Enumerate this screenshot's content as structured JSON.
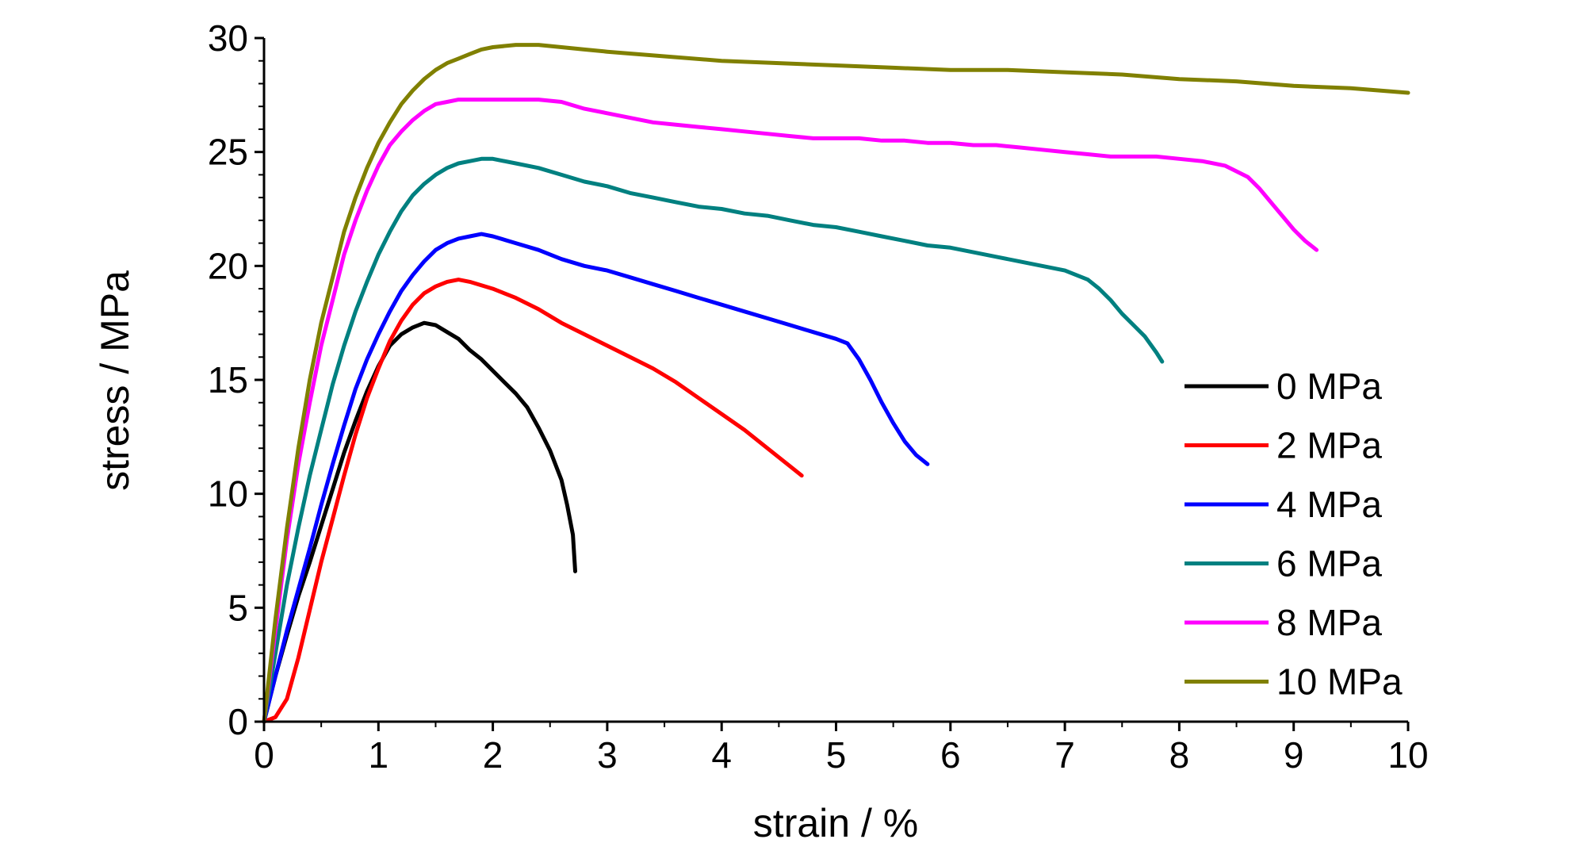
{
  "chart_data": {
    "type": "line",
    "xlabel": "strain / %",
    "ylabel": "stress / MPa",
    "xlim": [
      0,
      10
    ],
    "ylim": [
      0,
      30
    ],
    "xticks": [
      0,
      1,
      2,
      3,
      4,
      5,
      6,
      7,
      8,
      9,
      10
    ],
    "yticks": [
      0,
      5,
      10,
      15,
      20,
      25,
      30
    ],
    "grid": false,
    "legend_position": "lower-right",
    "series": [
      {
        "name": "0 MPa",
        "color": "#000000",
        "x": [
          0,
          0.1,
          0.2,
          0.3,
          0.4,
          0.5,
          0.6,
          0.7,
          0.8,
          0.9,
          1.0,
          1.1,
          1.2,
          1.3,
          1.4,
          1.5,
          1.6,
          1.7,
          1.8,
          1.9,
          2.0,
          2.1,
          2.2,
          2.3,
          2.4,
          2.5,
          2.6,
          2.65,
          2.7,
          2.72
        ],
        "y": [
          0,
          2.0,
          3.8,
          5.5,
          7.0,
          8.6,
          10.2,
          11.8,
          13.2,
          14.5,
          15.6,
          16.5,
          17.0,
          17.3,
          17.5,
          17.4,
          17.1,
          16.8,
          16.3,
          15.9,
          15.4,
          14.9,
          14.4,
          13.8,
          12.9,
          11.9,
          10.6,
          9.5,
          8.2,
          6.6
        ]
      },
      {
        "name": "2 MPa",
        "color": "#ff0000",
        "x": [
          0,
          0.1,
          0.2,
          0.3,
          0.4,
          0.5,
          0.6,
          0.7,
          0.8,
          0.9,
          1.0,
          1.1,
          1.2,
          1.3,
          1.4,
          1.5,
          1.6,
          1.7,
          1.8,
          2.0,
          2.2,
          2.4,
          2.6,
          2.8,
          3.0,
          3.2,
          3.4,
          3.6,
          3.8,
          4.0,
          4.2,
          4.4,
          4.6,
          4.7
        ],
        "y": [
          0,
          0.2,
          1.0,
          2.8,
          4.9,
          7.0,
          8.9,
          10.8,
          12.6,
          14.2,
          15.5,
          16.7,
          17.6,
          18.3,
          18.8,
          19.1,
          19.3,
          19.4,
          19.3,
          19.0,
          18.6,
          18.1,
          17.5,
          17.0,
          16.5,
          16.0,
          15.5,
          14.9,
          14.2,
          13.5,
          12.8,
          12.0,
          11.2,
          10.8
        ]
      },
      {
        "name": "4 MPa",
        "color": "#0000ff",
        "x": [
          0,
          0.1,
          0.2,
          0.3,
          0.4,
          0.5,
          0.6,
          0.7,
          0.8,
          0.9,
          1.0,
          1.1,
          1.2,
          1.3,
          1.4,
          1.5,
          1.6,
          1.7,
          1.8,
          1.9,
          2.0,
          2.2,
          2.4,
          2.6,
          2.8,
          3.0,
          3.2,
          3.4,
          3.6,
          3.8,
          4.0,
          4.2,
          4.4,
          4.6,
          4.8,
          5.0,
          5.1,
          5.2,
          5.3,
          5.4,
          5.5,
          5.6,
          5.7,
          5.8
        ],
        "y": [
          0,
          2.0,
          4.0,
          5.8,
          7.6,
          9.5,
          11.3,
          13.0,
          14.6,
          15.9,
          17.0,
          18.0,
          18.9,
          19.6,
          20.2,
          20.7,
          21.0,
          21.2,
          21.3,
          21.4,
          21.3,
          21.0,
          20.7,
          20.3,
          20.0,
          19.8,
          19.5,
          19.2,
          18.9,
          18.6,
          18.3,
          18.0,
          17.7,
          17.4,
          17.1,
          16.8,
          16.6,
          15.9,
          15.0,
          14.0,
          13.1,
          12.3,
          11.7,
          11.3
        ]
      },
      {
        "name": "6 MPa",
        "color": "#008080",
        "x": [
          0,
          0.1,
          0.2,
          0.3,
          0.4,
          0.5,
          0.6,
          0.7,
          0.8,
          0.9,
          1.0,
          1.1,
          1.2,
          1.3,
          1.4,
          1.5,
          1.6,
          1.7,
          1.8,
          1.9,
          2.0,
          2.2,
          2.4,
          2.6,
          2.8,
          3.0,
          3.2,
          3.4,
          3.6,
          3.8,
          4.0,
          4.2,
          4.4,
          4.6,
          4.8,
          5.0,
          5.2,
          5.4,
          5.6,
          5.8,
          6.0,
          6.2,
          6.4,
          6.6,
          6.8,
          7.0,
          7.2,
          7.3,
          7.4,
          7.5,
          7.6,
          7.7,
          7.8,
          7.85
        ],
        "y": [
          0,
          3.0,
          6.0,
          8.5,
          10.8,
          12.8,
          14.8,
          16.5,
          18.0,
          19.3,
          20.5,
          21.5,
          22.4,
          23.1,
          23.6,
          24.0,
          24.3,
          24.5,
          24.6,
          24.7,
          24.7,
          24.5,
          24.3,
          24.0,
          23.7,
          23.5,
          23.2,
          23.0,
          22.8,
          22.6,
          22.5,
          22.3,
          22.2,
          22.0,
          21.8,
          21.7,
          21.5,
          21.3,
          21.1,
          20.9,
          20.8,
          20.6,
          20.4,
          20.2,
          20.0,
          19.8,
          19.4,
          19.0,
          18.5,
          17.9,
          17.4,
          16.9,
          16.2,
          15.8
        ]
      },
      {
        "name": "8 MPa",
        "color": "#ff00ff",
        "x": [
          0,
          0.1,
          0.2,
          0.3,
          0.4,
          0.5,
          0.6,
          0.7,
          0.8,
          0.9,
          1.0,
          1.1,
          1.2,
          1.3,
          1.4,
          1.5,
          1.6,
          1.7,
          1.8,
          1.9,
          2.0,
          2.2,
          2.4,
          2.6,
          2.8,
          3.0,
          3.2,
          3.4,
          3.6,
          3.8,
          4.0,
          4.2,
          4.4,
          4.6,
          4.8,
          5.0,
          5.2,
          5.4,
          5.6,
          5.8,
          6.0,
          6.2,
          6.4,
          6.6,
          6.8,
          7.0,
          7.2,
          7.4,
          7.6,
          7.8,
          8.0,
          8.2,
          8.4,
          8.6,
          8.7,
          8.8,
          8.9,
          9.0,
          9.1,
          9.2
        ],
        "y": [
          0,
          4.0,
          8.0,
          11.3,
          14.0,
          16.5,
          18.5,
          20.5,
          22.0,
          23.3,
          24.4,
          25.3,
          25.9,
          26.4,
          26.8,
          27.1,
          27.2,
          27.3,
          27.3,
          27.3,
          27.3,
          27.3,
          27.3,
          27.2,
          26.9,
          26.7,
          26.5,
          26.3,
          26.2,
          26.1,
          26.0,
          25.9,
          25.8,
          25.7,
          25.6,
          25.6,
          25.6,
          25.5,
          25.5,
          25.4,
          25.4,
          25.3,
          25.3,
          25.2,
          25.1,
          25.0,
          24.9,
          24.8,
          24.8,
          24.8,
          24.7,
          24.6,
          24.4,
          23.9,
          23.4,
          22.8,
          22.2,
          21.6,
          21.1,
          20.7
        ]
      },
      {
        "name": "10 MPa",
        "color": "#808000",
        "x": [
          0,
          0.1,
          0.2,
          0.3,
          0.4,
          0.5,
          0.6,
          0.7,
          0.8,
          0.9,
          1.0,
          1.1,
          1.2,
          1.3,
          1.4,
          1.5,
          1.6,
          1.7,
          1.8,
          1.9,
          2.0,
          2.2,
          2.4,
          2.6,
          2.8,
          3.0,
          3.5,
          4.0,
          4.5,
          5.0,
          5.5,
          6.0,
          6.5,
          7.0,
          7.5,
          8.0,
          8.5,
          9.0,
          9.5,
          10.0
        ],
        "y": [
          0,
          4.5,
          8.5,
          12.0,
          15.0,
          17.5,
          19.5,
          21.5,
          23.0,
          24.3,
          25.4,
          26.3,
          27.1,
          27.7,
          28.2,
          28.6,
          28.9,
          29.1,
          29.3,
          29.5,
          29.6,
          29.7,
          29.7,
          29.6,
          29.5,
          29.4,
          29.2,
          29.0,
          28.9,
          28.8,
          28.7,
          28.6,
          28.6,
          28.5,
          28.4,
          28.2,
          28.1,
          27.9,
          27.8,
          27.6
        ]
      }
    ]
  }
}
